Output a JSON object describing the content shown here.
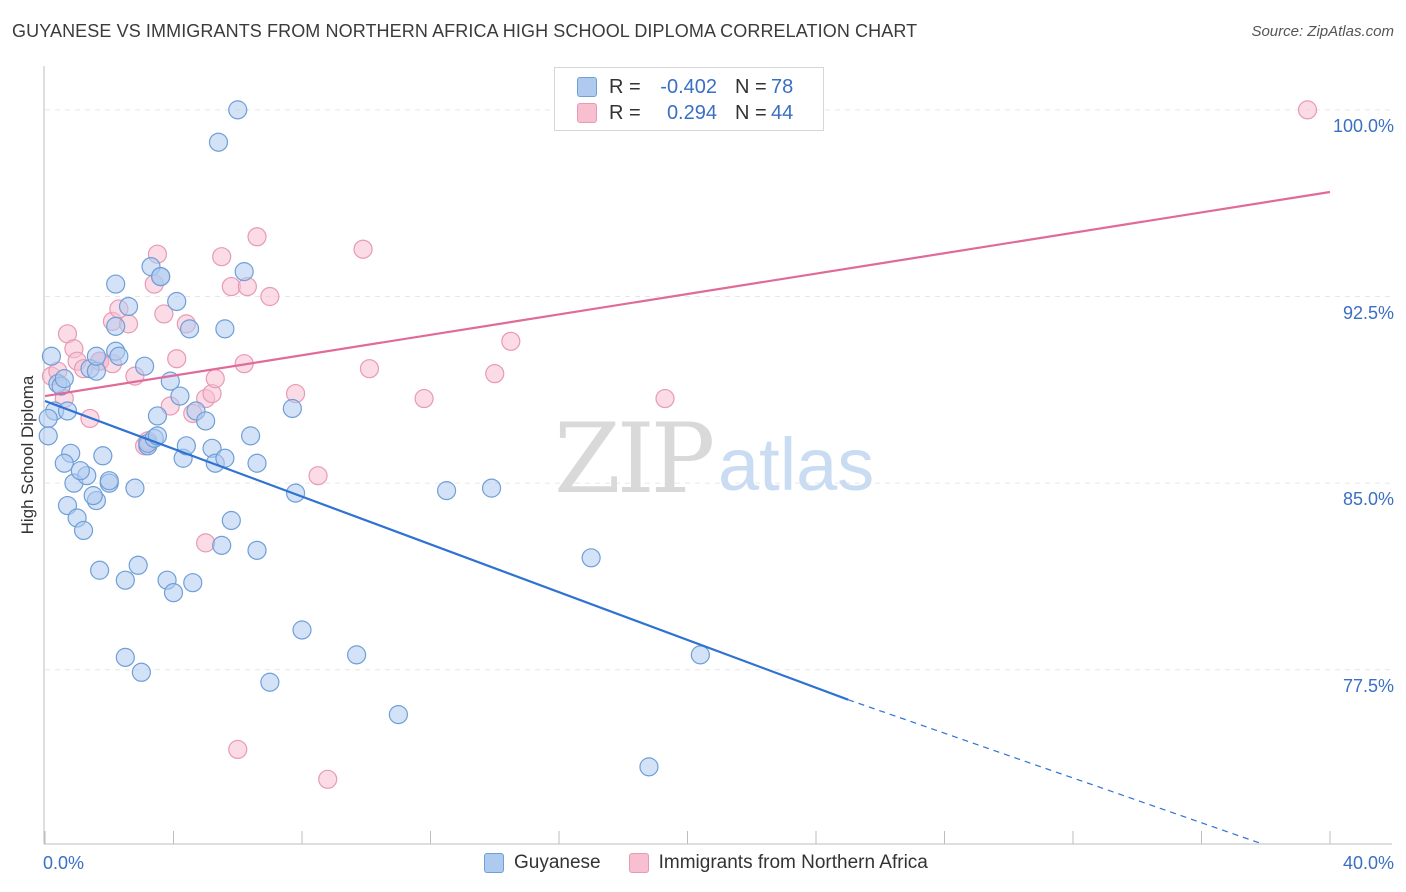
{
  "title": "GUYANESE VS IMMIGRANTS FROM NORTHERN AFRICA HIGH SCHOOL DIPLOMA CORRELATION CHART",
  "source": "Source: ZipAtlas.com",
  "watermark": {
    "zip": "ZIP",
    "atlas": "atlas"
  },
  "legend": {
    "rows": [
      {
        "r_label": "R =",
        "r_value": "-0.402",
        "n_label": "N =",
        "n_value": "78"
      },
      {
        "r_label": "R =",
        "r_value": "0.294",
        "n_label": "N =",
        "n_value": "44"
      }
    ]
  },
  "bottom_legend": {
    "items": [
      {
        "label": "Guyanese"
      },
      {
        "label": "Immigrants from Northern Africa"
      }
    ]
  },
  "colors": {
    "blue_fill": "#aecbef",
    "blue_stroke": "#6f9fd8",
    "blue_line": "#2f72d2",
    "pink_fill": "#f8bfd1",
    "pink_stroke": "#e79ab4",
    "pink_line": "#e06a98",
    "axis_text": "#3a6fc4"
  },
  "chart_data": {
    "type": "scatter",
    "title": "GUYANESE VS IMMIGRANTS FROM NORTHERN AFRICA HIGH SCHOOL DIPLOMA CORRELATION CHART",
    "xlabel": "",
    "ylabel": "High School Diploma",
    "xlim": [
      0,
      40
    ],
    "ylim": [
      70.5,
      101.2
    ],
    "x_tick_labels": [
      "0.0%",
      "40.0%"
    ],
    "y_ticks": [
      77.5,
      85.0,
      92.5,
      100.0
    ],
    "y_tick_labels": [
      "77.5%",
      "85.0%",
      "92.5%",
      "100.0%"
    ],
    "grid": true,
    "series": [
      {
        "name": "Guyanese",
        "r": -0.402,
        "n": 78,
        "trend": {
          "x0": 0.0,
          "y0": 88.3,
          "x1": 25.0,
          "y1": 76.3,
          "dash_to_x": 37.9,
          "dash_to_y": 70.5
        },
        "points": [
          [
            0.2,
            90.1
          ],
          [
            0.4,
            89.0
          ],
          [
            0.5,
            88.9
          ],
          [
            0.6,
            89.2
          ],
          [
            0.3,
            87.9
          ],
          [
            0.7,
            87.9
          ],
          [
            0.1,
            87.6
          ],
          [
            0.8,
            86.2
          ],
          [
            0.6,
            85.8
          ],
          [
            0.9,
            85.0
          ],
          [
            0.7,
            84.1
          ],
          [
            1.0,
            83.6
          ],
          [
            1.2,
            83.1
          ],
          [
            1.3,
            85.3
          ],
          [
            1.6,
            84.3
          ],
          [
            1.5,
            84.5
          ],
          [
            1.4,
            89.6
          ],
          [
            1.6,
            89.5
          ],
          [
            1.6,
            90.1
          ],
          [
            1.8,
            86.1
          ],
          [
            2.0,
            85.0
          ],
          [
            2.2,
            90.3
          ],
          [
            2.3,
            90.1
          ],
          [
            2.2,
            91.3
          ],
          [
            2.6,
            92.1
          ],
          [
            2.2,
            93.0
          ],
          [
            2.0,
            85.1
          ],
          [
            2.8,
            84.8
          ],
          [
            1.7,
            81.5
          ],
          [
            2.5,
            81.1
          ],
          [
            2.9,
            81.7
          ],
          [
            3.2,
            86.5
          ],
          [
            3.1,
            89.7
          ],
          [
            3.2,
            86.6
          ],
          [
            3.3,
            93.7
          ],
          [
            3.4,
            86.8
          ],
          [
            3.5,
            87.7
          ],
          [
            3.5,
            86.9
          ],
          [
            3.6,
            93.3
          ],
          [
            3.6,
            93.3
          ],
          [
            3.8,
            81.1
          ],
          [
            3.9,
            89.1
          ],
          [
            4.0,
            80.6
          ],
          [
            4.1,
            92.3
          ],
          [
            4.2,
            88.5
          ],
          [
            4.3,
            86.0
          ],
          [
            4.4,
            86.5
          ],
          [
            4.5,
            91.2
          ],
          [
            4.7,
            87.9
          ],
          [
            4.6,
            81.0
          ],
          [
            5.0,
            87.5
          ],
          [
            5.2,
            86.4
          ],
          [
            5.3,
            85.8
          ],
          [
            5.6,
            86.0
          ],
          [
            5.6,
            91.2
          ],
          [
            5.5,
            82.5
          ],
          [
            5.8,
            83.5
          ],
          [
            6.2,
            93.5
          ],
          [
            6.4,
            86.9
          ],
          [
            6.6,
            85.8
          ],
          [
            6.6,
            82.3
          ],
          [
            6.0,
            100.0
          ],
          [
            5.4,
            98.7
          ],
          [
            2.5,
            78.0
          ],
          [
            3.0,
            77.4
          ],
          [
            7.0,
            77.0
          ],
          [
            7.7,
            88.0
          ],
          [
            7.8,
            84.6
          ],
          [
            8.0,
            79.1
          ],
          [
            9.7,
            78.1
          ],
          [
            11.0,
            75.7
          ],
          [
            12.5,
            84.7
          ],
          [
            13.9,
            84.8
          ],
          [
            17.0,
            82.0
          ],
          [
            18.8,
            73.6
          ],
          [
            20.4,
            78.1
          ],
          [
            0.1,
            86.9
          ],
          [
            1.1,
            85.5
          ]
        ]
      },
      {
        "name": "Immigrants from Northern Africa",
        "r": 0.294,
        "n": 44,
        "trend": {
          "x0": 0.0,
          "y0": 88.5,
          "x1": 40.0,
          "y1": 96.7
        },
        "points": [
          [
            0.2,
            89.3
          ],
          [
            0.4,
            89.5
          ],
          [
            0.6,
            88.4
          ],
          [
            0.7,
            91.0
          ],
          [
            0.9,
            90.4
          ],
          [
            1.0,
            89.9
          ],
          [
            1.2,
            89.6
          ],
          [
            1.4,
            87.6
          ],
          [
            1.7,
            89.9
          ],
          [
            1.7,
            89.9
          ],
          [
            2.1,
            89.8
          ],
          [
            2.1,
            91.5
          ],
          [
            2.3,
            92.0
          ],
          [
            2.6,
            91.4
          ],
          [
            2.8,
            89.3
          ],
          [
            3.1,
            86.5
          ],
          [
            3.2,
            86.7
          ],
          [
            3.4,
            93.0
          ],
          [
            3.5,
            94.2
          ],
          [
            3.7,
            91.8
          ],
          [
            3.9,
            88.1
          ],
          [
            4.1,
            90.0
          ],
          [
            4.4,
            91.4
          ],
          [
            4.6,
            87.8
          ],
          [
            5.0,
            88.4
          ],
          [
            5.2,
            88.6
          ],
          [
            5.3,
            89.2
          ],
          [
            5.5,
            94.1
          ],
          [
            5.8,
            92.9
          ],
          [
            6.2,
            89.8
          ],
          [
            6.3,
            92.9
          ],
          [
            6.6,
            94.9
          ],
          [
            7.0,
            92.5
          ],
          [
            7.8,
            88.6
          ],
          [
            8.5,
            85.3
          ],
          [
            9.9,
            94.4
          ],
          [
            10.1,
            89.6
          ],
          [
            11.8,
            88.4
          ],
          [
            14.0,
            89.4
          ],
          [
            14.5,
            90.7
          ],
          [
            19.3,
            88.4
          ],
          [
            39.3,
            100.0
          ],
          [
            6.0,
            74.3
          ],
          [
            8.8,
            73.1
          ]
        ]
      },
      {
        "name": "",
        "points": [
          [
            5.0,
            82.6
          ]
        ]
      }
    ]
  }
}
